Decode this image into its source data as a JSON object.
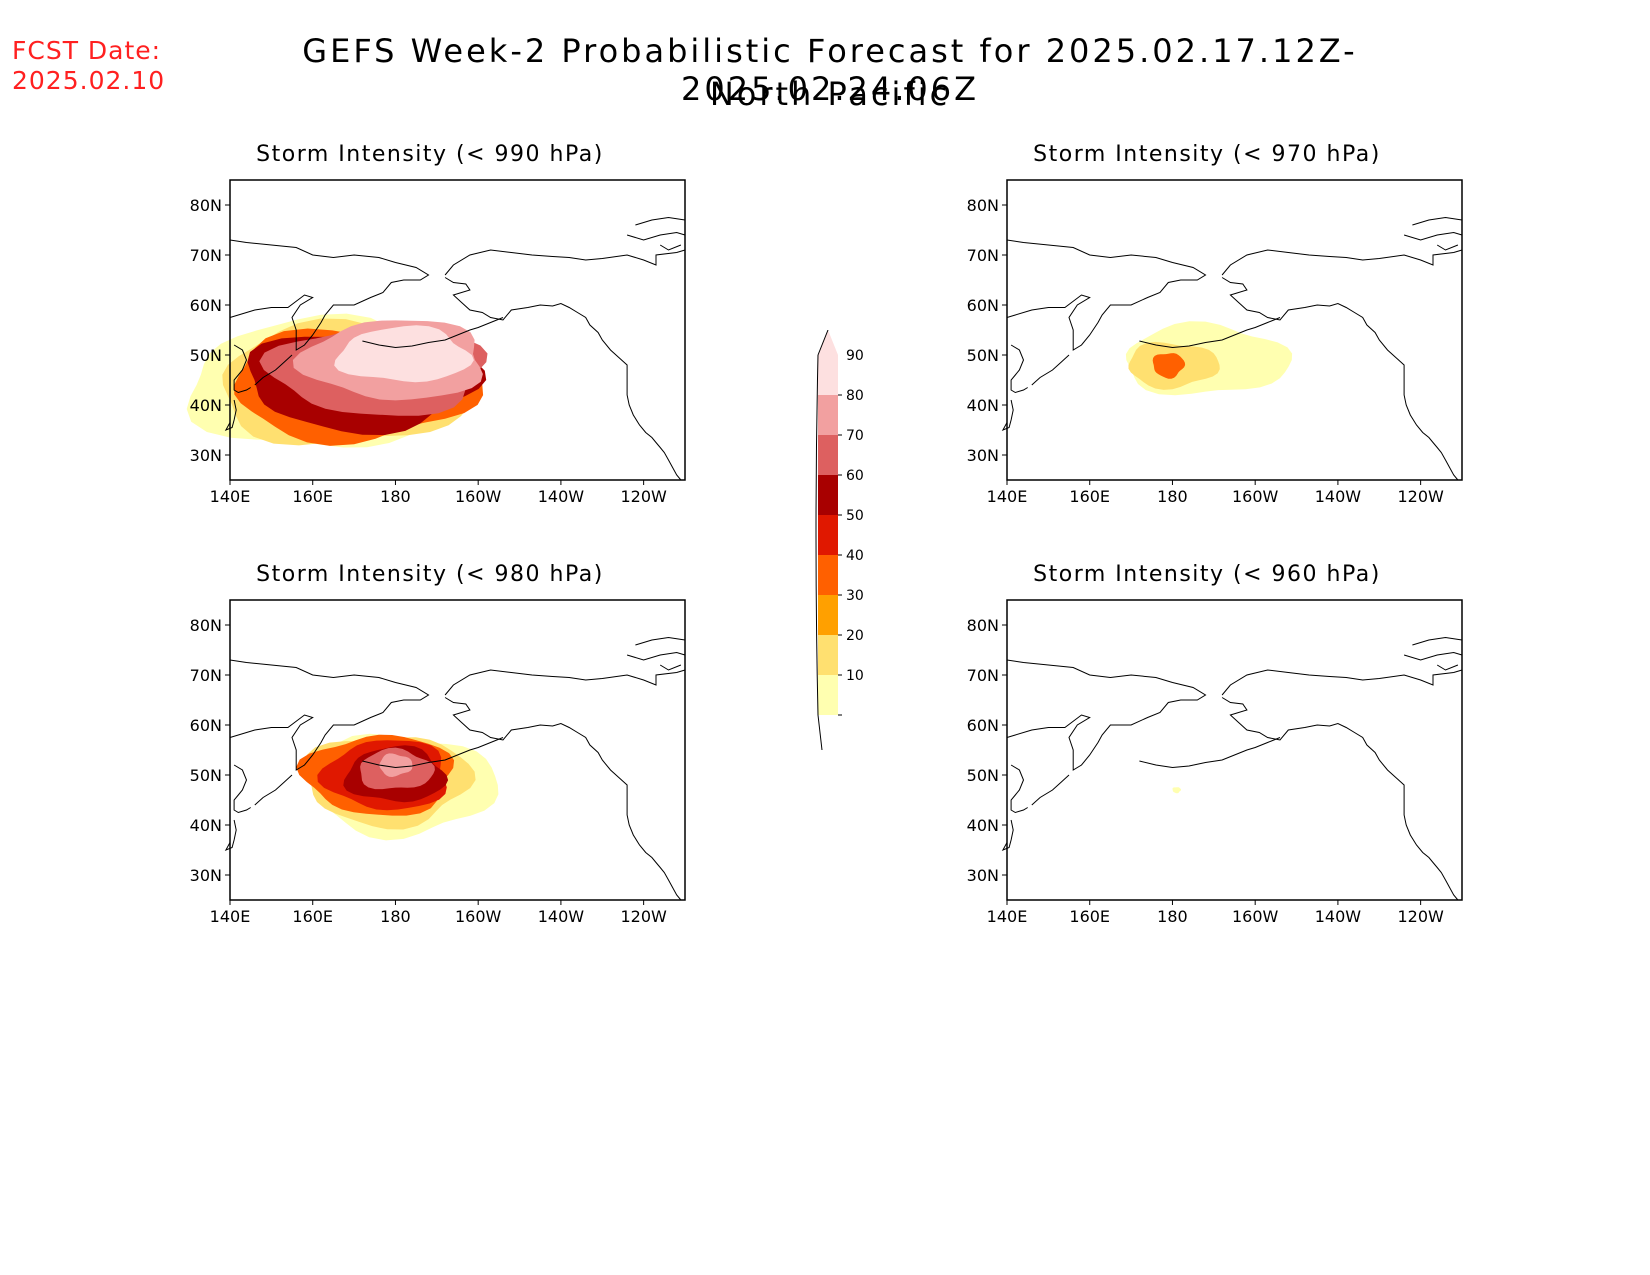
{
  "header": {
    "fcst_label": "FCST Date:",
    "fcst_date": "2025.02.10",
    "title": "GEFS Week-2 Probabilistic Forecast for 2025.02.17.12Z-2025.02.24.06Z",
    "subtitle": "North Pacific"
  },
  "axes": {
    "lat_ticks": [
      "80N",
      "70N",
      "60N",
      "50N",
      "40N",
      "30N"
    ],
    "lon_ticks": [
      "140E",
      "160E",
      "180",
      "160W",
      "140W",
      "120W"
    ]
  },
  "colorbar": {
    "levels": [
      "90",
      "80",
      "70",
      "60",
      "50",
      "40",
      "30",
      "20",
      "10"
    ],
    "colors": [
      "#fde0e0",
      "#f2a0a0",
      "#dd6060",
      "#a80000",
      "#e01800",
      "#ff6000",
      "#ffa000",
      "#ffe070",
      "#ffffb0"
    ]
  },
  "chart_data": [
    {
      "type": "heatmap",
      "title": "Storm Intensity (< 990 hPa)",
      "regions": [
        {
          "level": 10,
          "lon": 162,
          "lat": 44
        },
        {
          "level": 20,
          "lon": 168,
          "lat": 44
        },
        {
          "level": 40,
          "lon": 170,
          "lat": 44
        },
        {
          "level": 60,
          "lon": 172,
          "lat": 45
        },
        {
          "level": 70,
          "lon": 176,
          "lat": 47
        },
        {
          "level": 80,
          "lon": 180,
          "lat": 49
        },
        {
          "level": 90,
          "lon": 182,
          "lat": 50
        }
      ]
    },
    {
      "type": "heatmap",
      "title": "Storm Intensity (< 970 hPa)",
      "regions": [
        {
          "level": 10,
          "lon": 188,
          "lat": 49
        },
        {
          "level": 20,
          "lon": 180,
          "lat": 48
        },
        {
          "level": 40,
          "lon": 179,
          "lat": 48
        }
      ]
    },
    {
      "type": "heatmap",
      "title": "Storm Intensity (< 980 hPa)",
      "regions": [
        {
          "level": 10,
          "lon": 182,
          "lat": 48
        },
        {
          "level": 20,
          "lon": 178,
          "lat": 49
        },
        {
          "level": 40,
          "lon": 176,
          "lat": 50
        },
        {
          "level": 50,
          "lon": 178,
          "lat": 50
        },
        {
          "level": 60,
          "lon": 180,
          "lat": 50
        },
        {
          "level": 70,
          "lon": 180,
          "lat": 51
        },
        {
          "level": 80,
          "lon": 180,
          "lat": 52
        }
      ]
    },
    {
      "type": "heatmap",
      "title": "Storm Intensity (< 960 hPa)",
      "regions": [
        {
          "level": 10,
          "lon": 181,
          "lat": 47
        }
      ]
    }
  ]
}
